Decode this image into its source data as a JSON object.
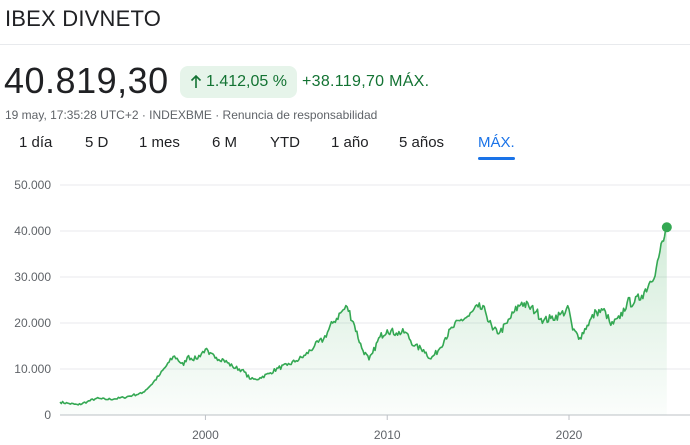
{
  "header": {
    "title": "IBEX DIVNETO",
    "price": "40.819,30",
    "pct_change": "1.412,05 %",
    "abs_change": "+38.119,70 MÁX.",
    "meta": "19 may, 17:35:28 UTC+2 · INDEXBME · Renuncia de responsabilidad",
    "up_arrow_icon": "arrow-up-icon"
  },
  "tabs": [
    {
      "label": "1 día",
      "active": false
    },
    {
      "label": "5 D",
      "active": false
    },
    {
      "label": "1 mes",
      "active": false
    },
    {
      "label": "6 M",
      "active": false
    },
    {
      "label": "YTD",
      "active": false
    },
    {
      "label": "1 año",
      "active": false
    },
    {
      "label": "5 años",
      "active": false
    },
    {
      "label": "MÁX.",
      "active": true
    }
  ],
  "colors": {
    "line": "#34a853",
    "positive": "#137333",
    "pill_bg": "#e6f4ea",
    "accent": "#1a73e8",
    "grid": "#e8eaed"
  },
  "chart_data": {
    "type": "area",
    "title": "",
    "xlabel": "",
    "ylabel": "",
    "ylim": [
      0,
      50000
    ],
    "y_ticks": [
      {
        "value": 0,
        "label": "0"
      },
      {
        "value": 10000,
        "label": "10.000"
      },
      {
        "value": 20000,
        "label": "20.000"
      },
      {
        "value": 30000,
        "label": "30.000"
      },
      {
        "value": 40000,
        "label": "40.000"
      },
      {
        "value": 50000,
        "label": "50.000"
      }
    ],
    "x_ticks": [
      {
        "value": 2000,
        "label": "2000"
      },
      {
        "value": 2010,
        "label": "2010"
      },
      {
        "value": 2020,
        "label": "2020"
      }
    ],
    "xlim": [
      1992.0,
      2025.5
    ],
    "grid": "horizontal",
    "series": [
      {
        "x": [
          1992.0,
          1992.5,
          1993.0,
          1993.5,
          1994.0,
          1994.5,
          1995.0,
          1995.5,
          1996.0,
          1996.5,
          1997.0,
          1997.5,
          1998.0,
          1998.3,
          1998.8,
          1999.0,
          1999.5,
          2000.0,
          2000.2,
          2000.6,
          2001.0,
          2001.5,
          2002.0,
          2002.5,
          2002.8,
          2003.0,
          2003.5,
          2004.0,
          2004.5,
          2005.0,
          2005.5,
          2006.0,
          2006.5,
          2007.0,
          2007.5,
          2007.8,
          2008.2,
          2008.6,
          2009.0,
          2009.2,
          2009.6,
          2010.0,
          2010.5,
          2011.0,
          2011.5,
          2012.0,
          2012.4,
          2012.8,
          2013.2,
          2013.6,
          2014.0,
          2014.5,
          2015.0,
          2015.4,
          2015.8,
          2016.2,
          2016.6,
          2017.0,
          2017.4,
          2017.8,
          2018.2,
          2018.6,
          2019.0,
          2019.5,
          2020.0,
          2020.2,
          2020.6,
          2021.0,
          2021.5,
          2022.0,
          2022.3,
          2022.8,
          2023.2,
          2023.6,
          2024.0,
          2024.4,
          2024.8,
          2025.0,
          2025.2,
          2025.38
        ],
        "y": [
          2800,
          2500,
          2200,
          2900,
          3600,
          3400,
          3500,
          3800,
          4300,
          4700,
          6500,
          8800,
          11500,
          12800,
          10800,
          12600,
          12200,
          14300,
          13200,
          12500,
          12000,
          10500,
          9800,
          7800,
          7700,
          8100,
          9000,
          10200,
          10800,
          11800,
          13000,
          15000,
          16500,
          20000,
          22500,
          23500,
          19500,
          14500,
          12000,
          13500,
          17000,
          18500,
          17800,
          18000,
          15000,
          14200,
          12200,
          14000,
          16800,
          19000,
          20500,
          21500,
          23500,
          22500,
          18500,
          18000,
          20000,
          22500,
          24500,
          23500,
          22500,
          20500,
          21000,
          21800,
          23000,
          18500,
          16800,
          19500,
          22500,
          22500,
          19500,
          21000,
          24500,
          24500,
          26000,
          28500,
          32000,
          35500,
          37800,
          40819
        ]
      }
    ]
  }
}
